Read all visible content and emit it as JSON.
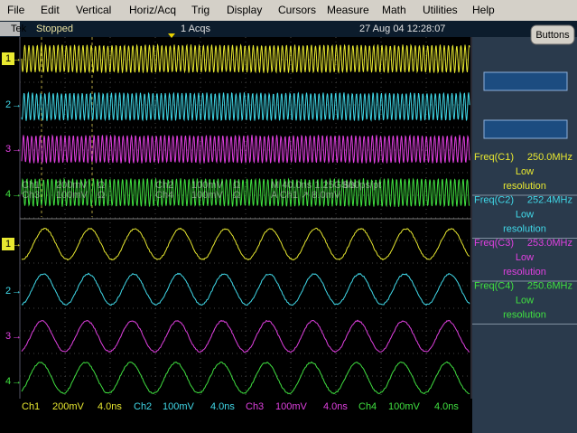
{
  "menu": [
    "File",
    "Edit",
    "Vertical",
    "Horiz/Acq",
    "Trig",
    "Display",
    "Cursors",
    "Measure",
    "Math",
    "Utilities",
    "Help"
  ],
  "status": {
    "brand": "Tek",
    "state": "Stopped",
    "acqs": "1 Acqs",
    "datetime": "27 Aug 04 12:28:07"
  },
  "buttons_label": "Buttons",
  "channel_markers": [
    "1",
    "2",
    "3",
    "4"
  ],
  "upper_readout": [
    [
      "Ch1",
      "200mV",
      "Ω",
      "Ch2",
      "100mV",
      "Ω",
      "M 40.0ns 1.25GS/s",
      "800ps/pt"
    ],
    [
      "Ch3",
      "100mV",
      "Ω",
      "Ch4",
      "100mV",
      "Ω",
      "A Ch1 ↗ 8.0mV"
    ]
  ],
  "bottom_readout": [
    {
      "channel": "Ch1",
      "volts": "200mV",
      "time": "4.0ns"
    },
    {
      "channel": "Ch2",
      "volts": "100mV",
      "time": "4.0ns"
    },
    {
      "channel": "Ch3",
      "volts": "100mV",
      "time": "4.0ns"
    },
    {
      "channel": "Ch4",
      "volts": "100mV",
      "time": "4.0ns"
    }
  ],
  "measurements": [
    {
      "label": "Freq(C1)",
      "value": "250.0MHz",
      "note": [
        "Low",
        "resolution"
      ]
    },
    {
      "label": "Freq(C2)",
      "value": "252.4MHz",
      "note": [
        "Low",
        "resolution"
      ]
    },
    {
      "label": "Freq(C3)",
      "value": "253.0MHz",
      "note": [
        "Low",
        "resolution"
      ]
    },
    {
      "label": "Freq(C4)",
      "value": "250.6MHz",
      "note": [
        "Low",
        "resolution"
      ]
    }
  ]
}
